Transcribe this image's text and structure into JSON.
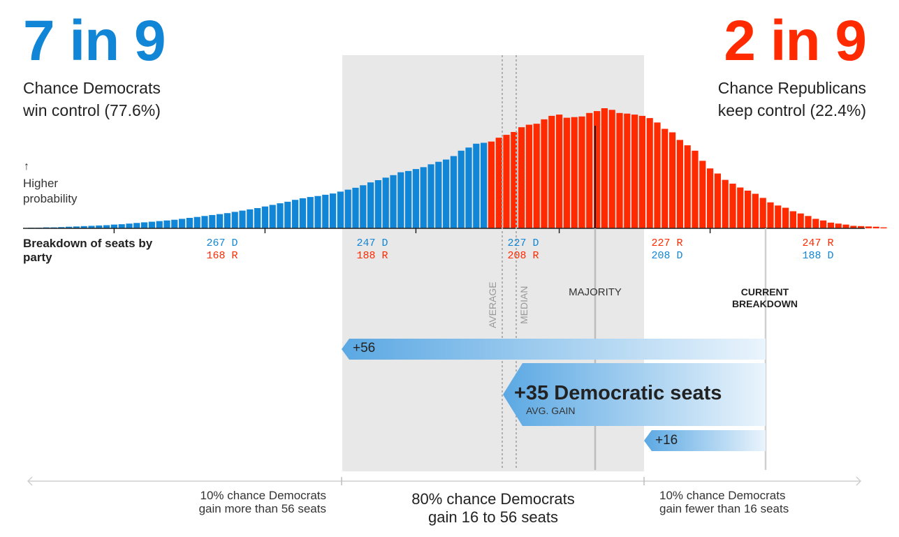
{
  "headline_dem": {
    "odds": "7 in 9",
    "line1": "Chance Democrats",
    "line2": "win control (77.6%)"
  },
  "headline_rep": {
    "odds": "2 in 9",
    "line1": "Chance Republicans",
    "line2": "keep control (22.4%)"
  },
  "y_axis": {
    "arrow": "↑",
    "line1": "Higher",
    "line2": "probability"
  },
  "breakdown_label": {
    "line1": "Breakdown of seats by",
    "line2": "party"
  },
  "markers": {
    "average": "AVERAGE",
    "median": "MEDIAN",
    "majority": "MAJORITY",
    "current_line1": "CURRENT",
    "current_line2": "BREAKDOWN"
  },
  "gain_bars": {
    "high": {
      "label": "+56",
      "value": 56
    },
    "avg": {
      "label": "+35 Democratic seats",
      "sub": "AVG. GAIN",
      "value": 35
    },
    "low": {
      "label": "+16",
      "value": 16
    }
  },
  "bottom": {
    "left_line1": "10% chance Democrats",
    "left_line2": "gain more than 56 seats",
    "mid_line1": "80% chance Democrats",
    "mid_line2": "gain 16 to 56 seats",
    "right_line1": "10% chance Democrats",
    "right_line2": "gain fewer than 16 seats"
  },
  "colors": {
    "dem": "#1185d6",
    "rep": "#ff2a00",
    "band": "#e8e8e8"
  },
  "chart_data": {
    "type": "bar",
    "xlabel": "Democratic seats",
    "x_start": 278,
    "x_end": 166,
    "majority": 218,
    "current_dem_seats": 194,
    "average_dem_seats": 229,
    "median_dem_seats": 227,
    "range_80pct": [
      210,
      250
    ],
    "values": [
      0.02,
      0.02,
      0.03,
      0.03,
      0.04,
      0.05,
      0.06,
      0.07,
      0.08,
      0.09,
      0.1,
      0.12,
      0.13,
      0.15,
      0.17,
      0.19,
      0.21,
      0.23,
      0.25,
      0.27,
      0.3,
      0.33,
      0.36,
      0.39,
      0.42,
      0.45,
      0.48,
      0.52,
      0.56,
      0.6,
      0.64,
      0.69,
      0.74,
      0.79,
      0.84,
      0.9,
      0.95,
      0.99,
      1.02,
      1.06,
      1.1,
      1.16,
      1.22,
      1.28,
      1.36,
      1.45,
      1.52,
      1.6,
      1.68,
      1.77,
      1.81,
      1.87,
      1.93,
      2.02,
      2.1,
      2.17,
      2.28,
      2.45,
      2.55,
      2.67,
      2.7,
      2.74,
      2.86,
      2.95,
      3.04,
      3.19,
      3.27,
      3.3,
      3.44,
      3.55,
      3.59,
      3.49,
      3.51,
      3.53,
      3.64,
      3.7,
      3.79,
      3.74,
      3.64,
      3.62,
      3.59,
      3.55,
      3.48,
      3.34,
      3.14,
      3.03,
      2.79,
      2.62,
      2.45,
      2.13,
      1.89,
      1.73,
      1.53,
      1.41,
      1.29,
      1.19,
      1.09,
      0.96,
      0.82,
      0.72,
      0.65,
      0.54,
      0.47,
      0.39,
      0.3,
      0.25,
      0.18,
      0.15,
      0.12,
      0.08,
      0.07,
      0.06,
      0.05,
      0.03
    ],
    "ticks": [
      {
        "dem": "267 D",
        "rep": "168 R",
        "seats": 267,
        "side": "D"
      },
      {
        "dem": "247 D",
        "rep": "188 R",
        "seats": 247,
        "side": "D"
      },
      {
        "dem": "227 D",
        "rep": "208 R",
        "seats": 227,
        "side": "D"
      },
      {
        "rep": "227 R",
        "dem": "208 D",
        "seats": 208,
        "side": "R"
      },
      {
        "rep": "247 R",
        "dem": "188 D",
        "seats": 188,
        "side": "R"
      }
    ]
  }
}
